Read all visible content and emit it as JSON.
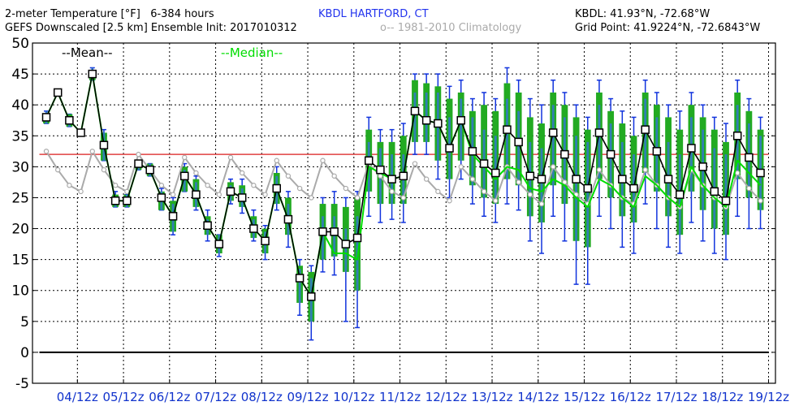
{
  "header": {
    "line1_left": "2-meter Temperature [°F]   6-384 hours",
    "station": "KBDL HARTFORD, CT",
    "line1_right": "KBDL: 41.93°N, -72.68°W",
    "line2_left": "GEFS Downscaled [2.5 km] Ensemble Init: 2017010312",
    "clim_label": "o-- 1981-2010 Climatology",
    "line2_right": "Grid Point: 41.9224°N, -72.6843°W",
    "mean_label": "--Mean--",
    "median_label": "--Median--"
  },
  "colors": {
    "mean": "#000000",
    "median": "#00dd00",
    "climatology": "#aaaaaa",
    "freezing_line": "#e04040",
    "box_fill": "#22aa22",
    "box_core": "#3377cc",
    "whisker": "#1133dd",
    "station_text": "#2233ee",
    "axis_label_text": "#1133cc"
  },
  "chart_data": {
    "type": "box",
    "ylim": [
      -5,
      50
    ],
    "yticks": [
      -5,
      0,
      5,
      10,
      15,
      20,
      25,
      30,
      35,
      40,
      45,
      50
    ],
    "freezing_line": 32,
    "zero_line": 0,
    "grid": true,
    "x_labels": [
      "04/12z",
      "05/12z",
      "06/12z",
      "07/12z",
      "08/12z",
      "09/12z",
      "10/12z",
      "11/12z",
      "12/12z",
      "13/12z",
      "14/12z",
      "15/12z",
      "16/12z",
      "17/12z",
      "18/12z",
      "19/12z"
    ],
    "series": [
      {
        "name": "Mean",
        "values": [
          38,
          42,
          37.5,
          35.5,
          45,
          33.5,
          24.5,
          24.5,
          30.5,
          29.5,
          25,
          22,
          28.5,
          25.5,
          20.5,
          17.5,
          26,
          25,
          20,
          18,
          26.5,
          21.5,
          12,
          9,
          19.5,
          19.5,
          17.5,
          18.5,
          31,
          29.5,
          28,
          28.5,
          39,
          37.5,
          37,
          33,
          37.5,
          32.5,
          30.5,
          29,
          36,
          34,
          28.5,
          28,
          35.5,
          32,
          28,
          26.5,
          35.5,
          32,
          28,
          26.5,
          36,
          32.5,
          28,
          25.5,
          33,
          30,
          26,
          24.5,
          35,
          31.5,
          29
        ]
      },
      {
        "name": "Median",
        "values": [
          38,
          42,
          37.5,
          35.5,
          45,
          33.5,
          24.5,
          24.5,
          30.5,
          29.5,
          25,
          22,
          28.5,
          25.5,
          20.5,
          17.5,
          26,
          25,
          20,
          18,
          26.5,
          21.5,
          12,
          9,
          19.5,
          16,
          16,
          15,
          30,
          29,
          28,
          28.5,
          39,
          37.5,
          37,
          33,
          37.5,
          32,
          30,
          28,
          30,
          29.5,
          26.5,
          26,
          28,
          27,
          25,
          23.5,
          28,
          27,
          25,
          23.5,
          28.5,
          27,
          25,
          23.5,
          30,
          27,
          25,
          23.5,
          31,
          29,
          27
        ]
      },
      {
        "name": "1981-2010 Climatology",
        "values": [
          32.5,
          29.5,
          27,
          26,
          32.5,
          29.5,
          27,
          26,
          32,
          29.5,
          27,
          25.5,
          31.5,
          29,
          27,
          25.5,
          31.5,
          29,
          27,
          25.5,
          31,
          28.5,
          26.5,
          25,
          31,
          28.5,
          26.5,
          25,
          30.5,
          28.5,
          26,
          25,
          30.5,
          28,
          26,
          24.5,
          30,
          28,
          26,
          24.5,
          30,
          27.5,
          25.5,
          24,
          30,
          27.5,
          25.5,
          24,
          29.5,
          27,
          25,
          24,
          29.5,
          27,
          25,
          23.5,
          29.5,
          27,
          25,
          23.5,
          29,
          26.5,
          24.5
        ]
      }
    ],
    "boxes": [
      [
        38,
        39,
        37,
        37,
        38,
        39
      ],
      [
        42,
        42,
        41.5,
        41.5,
        42,
        42.5
      ],
      [
        37.5,
        38,
        36.5,
        36.5,
        38.5,
        38.5
      ],
      [
        35.5,
        36,
        35,
        35,
        36,
        36
      ],
      [
        45,
        46,
        44,
        44,
        45.5,
        46
      ],
      [
        33.5,
        35.5,
        31,
        31,
        35.5,
        36
      ],
      [
        24.5,
        25,
        23.5,
        23.5,
        25.5,
        26
      ],
      [
        24.5,
        25.5,
        23.5,
        23.5,
        25.5,
        25.5
      ],
      [
        30.5,
        31,
        29.5,
        29.5,
        31,
        31
      ],
      [
        29.5,
        30.5,
        28.5,
        28.5,
        30.5,
        30.5
      ],
      [
        25,
        26,
        23,
        23,
        26,
        26.5
      ],
      [
        22,
        24,
        19.5,
        19,
        24.5,
        25
      ],
      [
        28.5,
        29.5,
        26,
        26,
        30,
        30.5
      ],
      [
        25.5,
        27.5,
        23.5,
        23,
        28,
        28.5
      ],
      [
        20.5,
        21.5,
        19,
        18,
        22,
        23
      ],
      [
        17.5,
        19,
        16,
        15.5,
        19,
        19
      ],
      [
        26,
        27,
        24.5,
        24,
        27.5,
        28
      ],
      [
        25,
        26.5,
        23.5,
        22.5,
        27,
        28
      ],
      [
        20,
        21.5,
        18.5,
        18,
        22,
        23
      ],
      [
        18,
        19.5,
        16,
        15,
        20,
        20.5
      ],
      [
        26.5,
        28.5,
        24,
        23,
        29,
        30
      ],
      [
        21.5,
        24,
        19,
        17,
        25,
        26
      ],
      [
        12,
        13.5,
        8,
        6,
        14,
        15
      ],
      [
        9,
        12,
        5,
        2,
        13,
        14
      ],
      [
        19.5,
        22,
        15,
        13,
        24,
        25
      ],
      [
        19.5,
        22,
        15.5,
        12.5,
        24,
        26
      ],
      [
        17.5,
        20,
        13,
        5,
        23.5,
        25
      ],
      [
        18.5,
        22,
        10,
        4,
        25,
        26
      ],
      [
        31,
        34,
        26,
        22,
        36,
        38
      ],
      [
        29.5,
        33,
        24,
        21,
        34,
        36
      ],
      [
        28,
        32,
        24,
        21.5,
        34,
        36
      ],
      [
        28.5,
        32,
        24,
        21,
        35,
        37
      ],
      [
        39,
        42,
        34,
        32,
        44,
        45
      ],
      [
        37.5,
        42,
        34,
        32,
        43.5,
        45
      ],
      [
        37,
        42,
        31,
        28,
        43,
        45
      ],
      [
        33,
        38,
        28,
        25,
        41,
        43
      ],
      [
        37.5,
        41,
        31,
        28,
        42,
        44
      ],
      [
        32.5,
        38,
        27,
        24,
        39,
        41
      ],
      [
        30.5,
        36,
        25,
        22,
        40,
        42
      ],
      [
        29,
        35,
        24,
        21,
        39,
        41
      ],
      [
        36,
        41,
        28,
        24,
        43.5,
        46
      ],
      [
        34,
        39,
        27,
        23,
        42,
        44
      ],
      [
        28.5,
        34,
        22,
        18,
        38,
        41
      ],
      [
        28,
        33,
        21,
        16,
        37,
        40
      ],
      [
        35.5,
        40,
        27,
        22,
        42,
        44
      ],
      [
        32,
        38,
        24,
        18,
        40,
        42
      ],
      [
        28,
        35,
        18,
        11,
        38,
        40
      ],
      [
        26.5,
        34,
        17,
        11,
        36,
        38
      ],
      [
        35.5,
        40,
        28,
        22,
        42,
        44
      ],
      [
        32,
        37,
        25,
        20,
        39,
        41
      ],
      [
        28,
        34,
        22,
        17,
        37,
        39
      ],
      [
        26.5,
        32,
        21,
        16,
        35,
        38
      ],
      [
        36,
        41,
        29,
        24,
        42,
        44
      ],
      [
        32.5,
        38,
        26,
        20,
        40,
        42
      ],
      [
        28,
        34,
        22,
        17,
        38,
        40
      ],
      [
        25.5,
        32,
        19,
        16,
        36,
        39
      ],
      [
        33,
        38,
        26,
        21,
        40,
        42
      ],
      [
        30,
        36,
        23,
        18,
        38,
        40
      ],
      [
        26,
        33,
        20,
        16,
        36,
        38
      ],
      [
        24.5,
        32,
        19,
        15,
        34,
        37
      ],
      [
        35,
        40,
        28,
        22,
        42,
        44
      ],
      [
        31.5,
        37,
        25,
        20,
        39,
        41
      ],
      [
        29,
        35,
        23,
        20,
        36,
        38
      ]
    ]
  }
}
